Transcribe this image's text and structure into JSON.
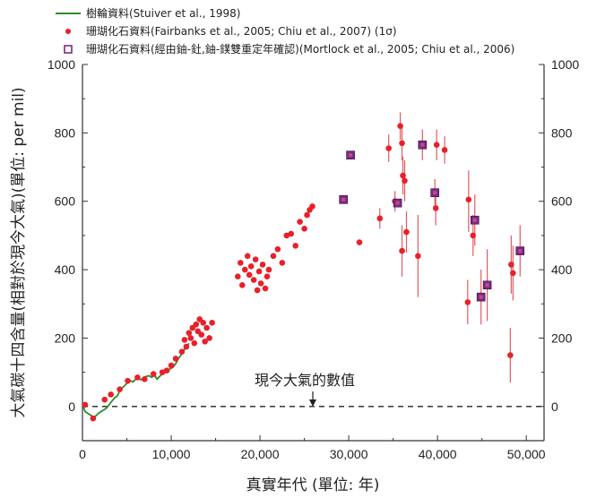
{
  "chart_data": {
    "type": "scatter",
    "xlabel": "真實年代 (單位: 年)",
    "ylabel": "大氣碳十四含量(相對於現今大氣)(單位: per mil)",
    "xlim": [
      0,
      52000
    ],
    "ylim": [
      -100,
      1000
    ],
    "x_ticks": [
      0,
      10000,
      20000,
      30000,
      40000,
      50000
    ],
    "x_tick_labels": [
      "0",
      "10,000",
      "20,000",
      "30,000",
      "40,000",
      "50,000"
    ],
    "y_ticks": [
      0,
      200,
      400,
      600,
      800,
      1000
    ],
    "y_tick_labels": [
      "0",
      "200",
      "400",
      "600",
      "800",
      "1000"
    ],
    "grid": false,
    "legend_position": "top",
    "reference_line": {
      "y": 0,
      "style": "dashed",
      "label": "現今大氣的數值"
    },
    "colors": {
      "tree": "#2e8b2e",
      "coral": "#e8202a",
      "coral_dated": "#7a2a82",
      "errorbar": "#e35a5f"
    },
    "series": [
      {
        "name": "樹輪資料(Stuiver et al., 1998)",
        "kind": "line",
        "x": [
          0,
          300,
          600,
          900,
          1200,
          1500,
          1800,
          2100,
          2400,
          2700,
          3000,
          3300,
          3600,
          3900,
          4200,
          4500,
          4800,
          5100,
          5400,
          5700,
          6000,
          6300,
          6600,
          6900,
          7200,
          7500,
          7800,
          8100,
          8400,
          8700,
          9000,
          9300,
          9600,
          9900,
          10200,
          10500,
          10800,
          11100,
          11400,
          11700,
          12000
        ],
        "y": [
          5,
          -15,
          -20,
          -25,
          -30,
          -28,
          -20,
          -15,
          -10,
          -5,
          5,
          15,
          25,
          30,
          45,
          55,
          62,
          70,
          75,
          72,
          80,
          82,
          78,
          85,
          88,
          90,
          85,
          92,
          80,
          88,
          95,
          100,
          105,
          110,
          115,
          125,
          140,
          150,
          165,
          170,
          185
        ]
      },
      {
        "name": "珊瑚化石資料(Fairbanks et al., 2005; Chiu et al., 2007) (1σ)",
        "kind": "points",
        "points": [
          [
            300,
            5
          ],
          [
            1200,
            -35
          ],
          [
            2500,
            20
          ],
          [
            3200,
            35
          ],
          [
            4200,
            50
          ],
          [
            5100,
            75
          ],
          [
            6200,
            85
          ],
          [
            7000,
            80
          ],
          [
            8000,
            95
          ],
          [
            9000,
            100
          ],
          [
            9500,
            105
          ],
          [
            10000,
            120
          ],
          [
            10500,
            140
          ],
          [
            11200,
            160
          ],
          [
            11500,
            195
          ],
          [
            11700,
            175
          ],
          [
            12000,
            215
          ],
          [
            12200,
            200
          ],
          [
            12400,
            230
          ],
          [
            12600,
            185
          ],
          [
            12800,
            240
          ],
          [
            13000,
            220
          ],
          [
            13200,
            255
          ],
          [
            13400,
            210
          ],
          [
            13600,
            245
          ],
          [
            13800,
            190
          ],
          [
            14000,
            230
          ],
          [
            14300,
            200
          ],
          [
            14600,
            245
          ],
          [
            17500,
            380
          ],
          [
            17800,
            420
          ],
          [
            18000,
            355
          ],
          [
            18300,
            400
          ],
          [
            18600,
            440
          ],
          [
            18800,
            385
          ],
          [
            19000,
            410
          ],
          [
            19300,
            370
          ],
          [
            19500,
            430
          ],
          [
            19700,
            340
          ],
          [
            19900,
            395
          ],
          [
            20100,
            360
          ],
          [
            20300,
            415
          ],
          [
            20600,
            345
          ],
          [
            20800,
            380
          ],
          [
            21000,
            400
          ],
          [
            21500,
            440
          ],
          [
            22000,
            460
          ],
          [
            22500,
            420
          ],
          [
            23000,
            500
          ],
          [
            23500,
            505
          ],
          [
            24000,
            470
          ],
          [
            24500,
            540
          ],
          [
            25000,
            520
          ],
          [
            25300,
            560
          ],
          [
            25600,
            575
          ],
          [
            25900,
            585
          ],
          [
            29400,
            605
          ],
          [
            30100,
            735
          ],
          [
            31200,
            480
          ],
          [
            33500,
            550
          ],
          [
            34500,
            755
          ],
          [
            35200,
            600
          ],
          [
            35800,
            820
          ],
          [
            36000,
            770
          ],
          [
            36000,
            455
          ],
          [
            36100,
            675
          ],
          [
            36300,
            660
          ],
          [
            36500,
            510
          ],
          [
            37800,
            440
          ],
          [
            39800,
            580
          ],
          [
            39900,
            765
          ],
          [
            40800,
            750
          ],
          [
            43400,
            305
          ],
          [
            43500,
            605
          ],
          [
            44000,
            500
          ],
          [
            48200,
            150
          ],
          [
            48300,
            415
          ],
          [
            48500,
            390
          ]
        ]
      },
      {
        "name": "珊瑚化石資料(經由鈾-釷,鈾-鏷雙重定年確認)(Mortlock et al., 2005; Chiu et al., 2006)",
        "kind": "squares",
        "points": [
          [
            29400,
            605
          ],
          [
            30200,
            735
          ],
          [
            35500,
            595
          ],
          [
            38300,
            765
          ],
          [
            39700,
            625
          ],
          [
            44200,
            545
          ],
          [
            44900,
            320
          ],
          [
            45600,
            355
          ],
          [
            49300,
            455
          ]
        ]
      }
    ],
    "error_bars": [
      [
        33500,
        520,
        580
      ],
      [
        34500,
        715,
        795
      ],
      [
        35200,
        570,
        630
      ],
      [
        35800,
        780,
        860
      ],
      [
        36000,
        720,
        820
      ],
      [
        36000,
        380,
        530
      ],
      [
        36100,
        620,
        730
      ],
      [
        36300,
        600,
        720
      ],
      [
        36500,
        450,
        570
      ],
      [
        37800,
        320,
        560
      ],
      [
        38300,
        720,
        810
      ],
      [
        39800,
        530,
        630
      ],
      [
        39700,
        585,
        665
      ],
      [
        39900,
        720,
        810
      ],
      [
        40800,
        710,
        790
      ],
      [
        43400,
        240,
        370
      ],
      [
        43500,
        510,
        690
      ],
      [
        44000,
        440,
        560
      ],
      [
        44200,
        470,
        620
      ],
      [
        44900,
        240,
        400
      ],
      [
        45600,
        250,
        460
      ],
      [
        48200,
        70,
        230
      ],
      [
        48300,
        330,
        500
      ],
      [
        48500,
        310,
        470
      ],
      [
        49300,
        380,
        530
      ]
    ]
  }
}
